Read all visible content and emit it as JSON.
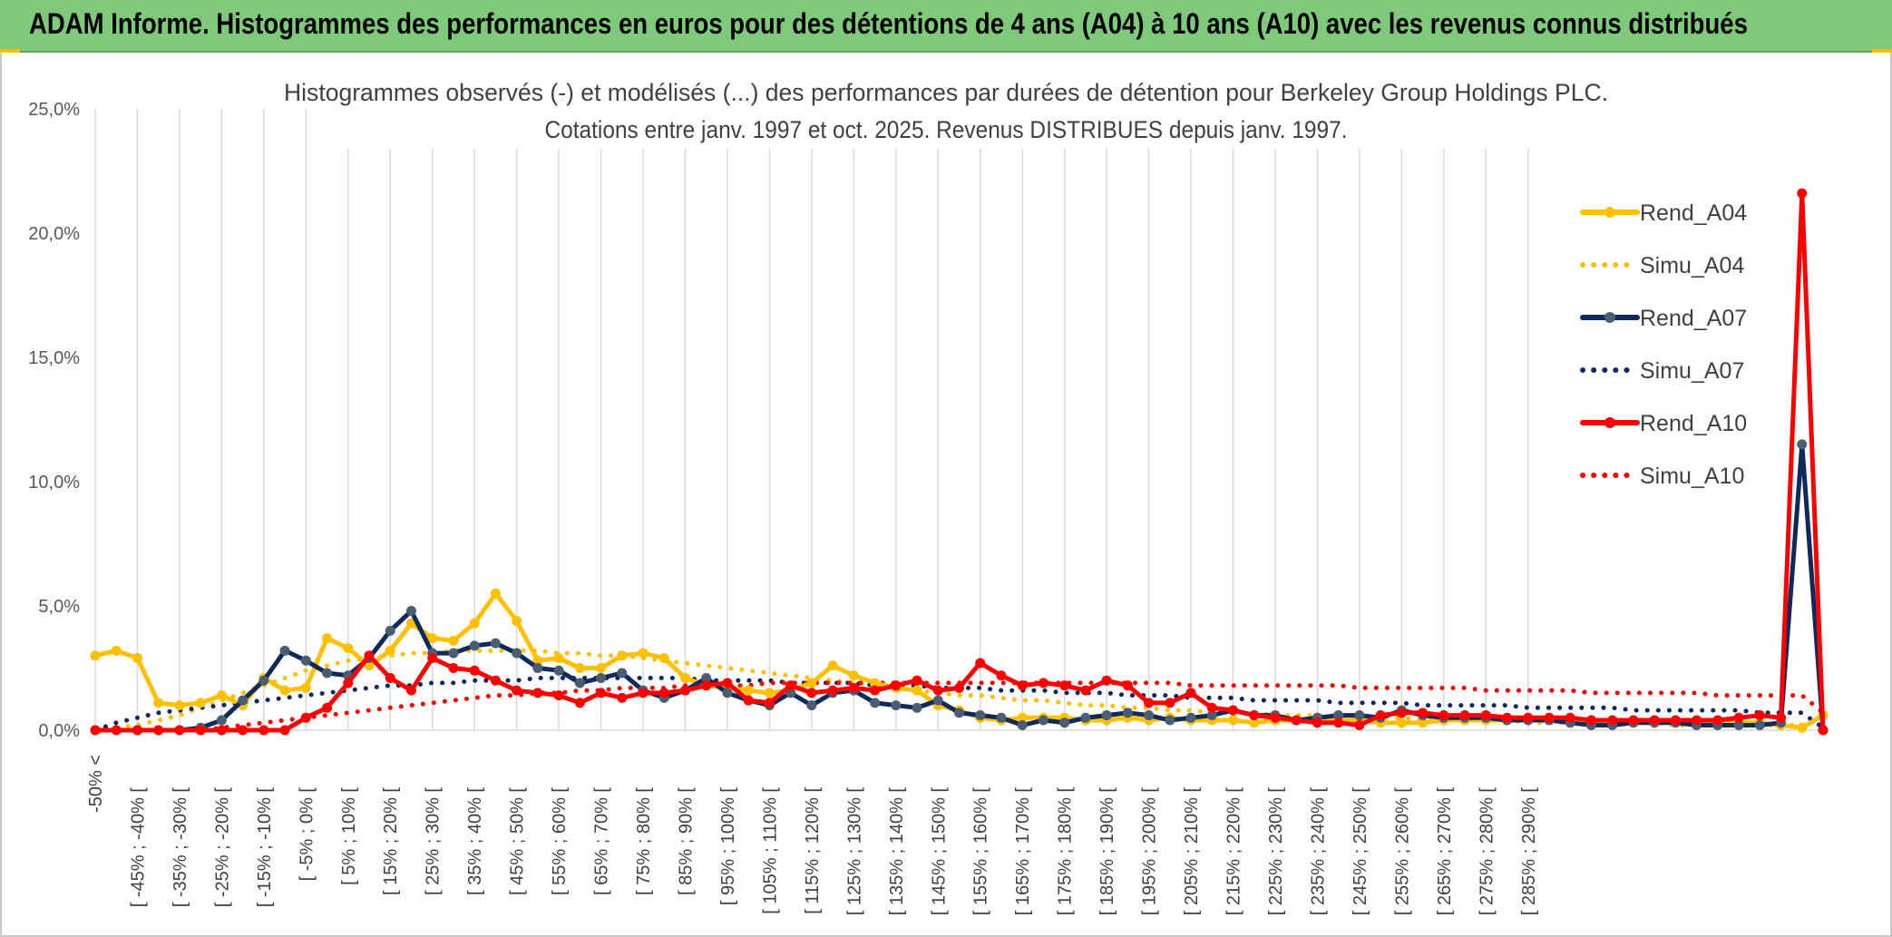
{
  "banner": {
    "title": "ADAM Informe. Histogrammes des performances en euros pour des détentions de 4 ans (A04) à 10 ans (A10) avec les revenus connus distribués"
  },
  "chart_data": {
    "type": "line",
    "title": "Histogrammes observés (-) et modélisés (...) des performances par durées de détention pour Berkeley Group Holdings PLC.",
    "subtitle": "Cotations entre janv. 1997 et oct. 2025. Revenus DISTRIBUES depuis janv. 1997.",
    "xlabel": "",
    "ylabel": "",
    "ylim": [
      0,
      25
    ],
    "yticks": [
      "0,0%",
      "5,0%",
      "10,0%",
      "15,0%",
      "20,0%",
      "25,0%"
    ],
    "grid": "vertical",
    "legend": "right",
    "x_tick_labels": [
      "-50% <",
      "[ -45% ; -40% [",
      "[ -35% ; -30% [",
      "[ -25% ; -20% [",
      "[ -15% ; -10% [",
      "[ -5% ; 0% [",
      "[ 5% ; 10% [",
      "[ 15% ; 20% [",
      "[ 25% ; 30% [",
      "[ 35% ; 40% [",
      "[ 45% ; 50% [",
      "[ 55% ; 60% [",
      "[ 65% ; 70% [",
      "[ 75% ; 80% [",
      "[ 85% ; 90% [",
      "[ 95% ; 100% [",
      "[ 105% ; 110% [",
      "[ 115% ; 120% [",
      "[ 125% ; 130% [",
      "[ 135% ; 140% [",
      "[ 145% ; 150% [",
      "[ 155% ; 160% [",
      "[ 165% ; 170% [",
      "[ 175% ; 180% [",
      "[ 185% ; 190% [",
      "[ 195% ; 200% [",
      "[ 205% ; 210% [",
      "[ 215% ; 220% [",
      "[ 225% ; 230% [",
      "[ 235% ; 240% [",
      "[ 245% ; 250% [",
      "[ 255% ; 260% [",
      "[ 265% ; 270% [",
      "[ 275% ; 280% [",
      "[ 285% ; 290% ["
    ],
    "series": [
      {
        "name": "Rend_A04",
        "color": "#ffc000",
        "style": "solid",
        "markers": true,
        "values": [
          3.0,
          3.2,
          2.9,
          1.1,
          1.0,
          1.1,
          1.4,
          1.0,
          2.1,
          1.6,
          1.7,
          3.7,
          3.3,
          2.6,
          3.2,
          4.3,
          3.7,
          3.6,
          4.3,
          5.5,
          4.4,
          2.8,
          2.9,
          2.5,
          2.5,
          3.0,
          3.1,
          2.9,
          2.1,
          1.8,
          1.7,
          1.6,
          1.5,
          1.6,
          1.9,
          2.6,
          2.2,
          1.9,
          1.7,
          1.6,
          1.0,
          0.8,
          0.5,
          0.4,
          0.5,
          0.5,
          0.5,
          0.4,
          0.4,
          0.5,
          0.4,
          0.5,
          0.4,
          0.4,
          0.4,
          0.3,
          0.4,
          0.4,
          0.5,
          0.4,
          0.4,
          0.3,
          0.3,
          0.3,
          0.4,
          0.4,
          0.4,
          0.4,
          0.4,
          0.5,
          0.3,
          0.4,
          0.3,
          0.3,
          0.3,
          0.3,
          0.3,
          0.3,
          0.3,
          0.3,
          0.2,
          0.1,
          0.6
        ]
      },
      {
        "name": "Simu_A04",
        "color": "#ffc000",
        "style": "dotted",
        "markers": false,
        "values": [
          0.0,
          0.1,
          0.2,
          0.4,
          0.6,
          0.9,
          1.2,
          1.5,
          1.8,
          2.1,
          2.4,
          2.6,
          2.8,
          2.9,
          3.0,
          3.1,
          3.1,
          3.2,
          3.2,
          3.2,
          3.2,
          3.2,
          3.1,
          3.1,
          3.0,
          3.0,
          2.9,
          2.8,
          2.7,
          2.6,
          2.5,
          2.4,
          2.3,
          2.2,
          2.1,
          2.0,
          1.9,
          1.8,
          1.7,
          1.6,
          1.5,
          1.4,
          1.4,
          1.3,
          1.2,
          1.2,
          1.1,
          1.0,
          1.0,
          0.9,
          0.9,
          0.8,
          0.8,
          0.7,
          0.7,
          0.7,
          0.6,
          0.6,
          0.6,
          0.5,
          0.5,
          0.5,
          0.5,
          0.4,
          0.4,
          0.4,
          0.4,
          0.4,
          0.3,
          0.3,
          0.3,
          0.3,
          0.3,
          0.3,
          0.3,
          0.2,
          0.2,
          0.2,
          0.2,
          0.2,
          0.2,
          0.2,
          0.5
        ]
      },
      {
        "name": "Rend_A07",
        "color": "#0f2a5a",
        "style": "solid",
        "markers": true,
        "values": [
          0.0,
          0.0,
          0.0,
          0.0,
          0.0,
          0.1,
          0.4,
          1.2,
          2.0,
          3.2,
          2.8,
          2.3,
          2.2,
          2.9,
          4.0,
          4.8,
          3.1,
          3.1,
          3.4,
          3.5,
          3.1,
          2.5,
          2.4,
          1.9,
          2.1,
          2.3,
          1.6,
          1.3,
          1.6,
          2.1,
          1.5,
          1.2,
          1.0,
          1.5,
          1.0,
          1.5,
          1.6,
          1.1,
          1.0,
          0.9,
          1.2,
          0.7,
          0.6,
          0.5,
          0.2,
          0.4,
          0.3,
          0.5,
          0.6,
          0.7,
          0.6,
          0.4,
          0.5,
          0.6,
          0.8,
          0.6,
          0.6,
          0.4,
          0.5,
          0.6,
          0.6,
          0.5,
          0.8,
          0.6,
          0.5,
          0.5,
          0.5,
          0.4,
          0.4,
          0.4,
          0.3,
          0.2,
          0.2,
          0.3,
          0.3,
          0.3,
          0.2,
          0.2,
          0.2,
          0.2,
          0.3,
          11.5,
          0.0
        ]
      },
      {
        "name": "Simu_A07",
        "color": "#0f2a5a",
        "style": "dotted",
        "markers": false,
        "values": [
          0.0,
          0.3,
          0.5,
          0.7,
          0.8,
          0.9,
          1.0,
          1.1,
          1.2,
          1.3,
          1.4,
          1.5,
          1.6,
          1.7,
          1.8,
          1.8,
          1.9,
          1.9,
          2.0,
          2.0,
          2.0,
          2.1,
          2.1,
          2.1,
          2.1,
          2.1,
          2.1,
          2.1,
          2.1,
          2.0,
          2.0,
          2.0,
          2.0,
          1.9,
          1.9,
          1.9,
          1.9,
          1.8,
          1.8,
          1.8,
          1.7,
          1.7,
          1.7,
          1.6,
          1.6,
          1.6,
          1.5,
          1.5,
          1.5,
          1.4,
          1.4,
          1.4,
          1.3,
          1.3,
          1.3,
          1.2,
          1.2,
          1.2,
          1.2,
          1.1,
          1.1,
          1.1,
          1.1,
          1.0,
          1.0,
          1.0,
          1.0,
          1.0,
          0.9,
          0.9,
          0.9,
          0.9,
          0.9,
          0.8,
          0.8,
          0.8,
          0.8,
          0.8,
          0.8,
          0.7,
          0.7,
          0.7,
          0.1
        ]
      },
      {
        "name": "Rend_A10",
        "color": "#ff0000",
        "style": "solid",
        "markers": true,
        "values": [
          0.0,
          0.0,
          0.0,
          0.0,
          0.0,
          0.0,
          0.0,
          0.0,
          0.0,
          0.0,
          0.5,
          0.9,
          1.9,
          3.0,
          2.1,
          1.6,
          2.9,
          2.5,
          2.4,
          2.0,
          1.6,
          1.5,
          1.4,
          1.1,
          1.5,
          1.3,
          1.5,
          1.5,
          1.6,
          1.8,
          1.9,
          1.2,
          1.1,
          1.8,
          1.5,
          1.6,
          1.7,
          1.6,
          1.8,
          2.0,
          1.6,
          1.7,
          2.7,
          2.2,
          1.8,
          1.9,
          1.8,
          1.6,
          2.0,
          1.8,
          1.1,
          1.1,
          1.5,
          0.9,
          0.8,
          0.6,
          0.5,
          0.4,
          0.3,
          0.3,
          0.2,
          0.6,
          0.7,
          0.7,
          0.6,
          0.6,
          0.6,
          0.5,
          0.5,
          0.5,
          0.5,
          0.4,
          0.4,
          0.4,
          0.4,
          0.4,
          0.4,
          0.4,
          0.5,
          0.6,
          0.5,
          21.6,
          0.0
        ]
      },
      {
        "name": "Simu_A10",
        "color": "#ff0000",
        "style": "dotted",
        "markers": false,
        "values": [
          0.0,
          0.0,
          0.0,
          0.0,
          0.0,
          0.0,
          0.1,
          0.2,
          0.3,
          0.4,
          0.5,
          0.6,
          0.7,
          0.8,
          0.9,
          1.0,
          1.1,
          1.2,
          1.3,
          1.4,
          1.4,
          1.5,
          1.5,
          1.6,
          1.6,
          1.7,
          1.7,
          1.7,
          1.8,
          1.8,
          1.8,
          1.8,
          1.9,
          1.9,
          1.9,
          1.9,
          1.9,
          1.9,
          1.9,
          1.9,
          1.9,
          1.9,
          1.9,
          1.9,
          1.9,
          1.9,
          1.9,
          1.9,
          1.9,
          1.9,
          1.9,
          1.9,
          1.8,
          1.8,
          1.8,
          1.8,
          1.8,
          1.8,
          1.8,
          1.8,
          1.7,
          1.7,
          1.7,
          1.7,
          1.7,
          1.7,
          1.6,
          1.6,
          1.6,
          1.6,
          1.6,
          1.5,
          1.5,
          1.5,
          1.5,
          1.5,
          1.5,
          1.4,
          1.4,
          1.4,
          1.4,
          1.4,
          0.7
        ]
      }
    ]
  }
}
